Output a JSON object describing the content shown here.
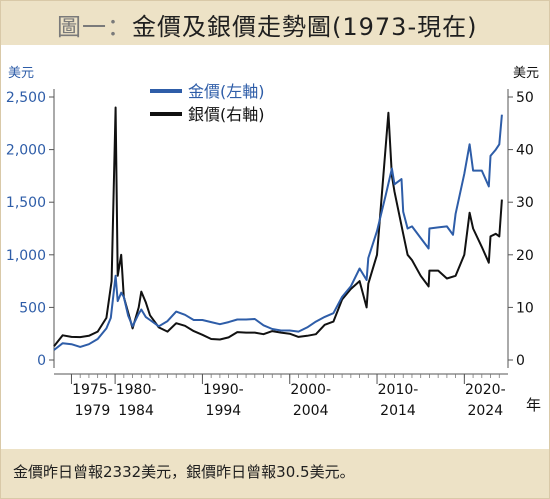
{
  "title": {
    "prefix": "圖一",
    "separator": "：",
    "text": "金價及銀價走勢圖(1973-現在)"
  },
  "footer": "金價昨日曾報2332美元，銀價昨日曾報30.5美元。",
  "chart_data": {
    "type": "line",
    "left_axis": {
      "unit": "美元",
      "ticks": [
        "0",
        "500",
        "1,000",
        "1,500",
        "2,000",
        "2,500"
      ],
      "range": [
        0,
        2500
      ],
      "color": "#2e5da8"
    },
    "right_axis": {
      "unit": "美元",
      "ticks": [
        "0",
        "10",
        "20",
        "30",
        "40",
        "50"
      ],
      "range": [
        0,
        50
      ]
    },
    "x_unit": "年",
    "x_ticks": [
      {
        "top": "1975-",
        "bottom": "1979"
      },
      {
        "top": "1980-",
        "bottom": "1984"
      },
      {
        "top": "1990-",
        "bottom": "1994"
      },
      {
        "top": "2000-",
        "bottom": "2004"
      },
      {
        "top": "2010-",
        "bottom": "2014"
      },
      {
        "top": "2020-",
        "bottom": "2024"
      }
    ],
    "legend": {
      "placement": "top-left"
    },
    "series": [
      {
        "name": "金價(左軸)",
        "axis": "left",
        "color": "#2e5da8",
        "points": [
          [
            1973,
            95
          ],
          [
            1974,
            160
          ],
          [
            1975,
            150
          ],
          [
            1976,
            125
          ],
          [
            1977,
            150
          ],
          [
            1978,
            200
          ],
          [
            1979,
            300
          ],
          [
            1979.5,
            400
          ],
          [
            1980.05,
            800
          ],
          [
            1980.3,
            560
          ],
          [
            1980.7,
            640
          ],
          [
            1981,
            600
          ],
          [
            1981.5,
            420
          ],
          [
            1982,
            320
          ],
          [
            1982.7,
            440
          ],
          [
            1983,
            480
          ],
          [
            1983.5,
            410
          ],
          [
            1984,
            380
          ],
          [
            1985,
            320
          ],
          [
            1986,
            370
          ],
          [
            1987,
            460
          ],
          [
            1988,
            430
          ],
          [
            1989,
            380
          ],
          [
            1990,
            380
          ],
          [
            1991,
            360
          ],
          [
            1992,
            340
          ],
          [
            1993,
            360
          ],
          [
            1994,
            385
          ],
          [
            1995,
            385
          ],
          [
            1996,
            390
          ],
          [
            1997,
            330
          ],
          [
            1998,
            295
          ],
          [
            1999,
            280
          ],
          [
            2000,
            280
          ],
          [
            2001,
            270
          ],
          [
            2002,
            310
          ],
          [
            2003,
            365
          ],
          [
            2004,
            410
          ],
          [
            2005,
            445
          ],
          [
            2006,
            600
          ],
          [
            2007,
            700
          ],
          [
            2008,
            870
          ],
          [
            2008.8,
            760
          ],
          [
            2009,
            970
          ],
          [
            2010,
            1225
          ],
          [
            2011,
            1570
          ],
          [
            2011.7,
            1820
          ],
          [
            2012,
            1670
          ],
          [
            2012.8,
            1720
          ],
          [
            2013,
            1410
          ],
          [
            2013.5,
            1250
          ],
          [
            2014,
            1270
          ],
          [
            2015,
            1160
          ],
          [
            2015.9,
            1060
          ],
          [
            2016,
            1250
          ],
          [
            2017,
            1260
          ],
          [
            2018,
            1270
          ],
          [
            2018.7,
            1190
          ],
          [
            2019,
            1390
          ],
          [
            2020,
            1770
          ],
          [
            2020.6,
            2050
          ],
          [
            2021,
            1800
          ],
          [
            2022,
            1800
          ],
          [
            2022.8,
            1650
          ],
          [
            2023,
            1940
          ],
          [
            2023.6,
            2000
          ],
          [
            2024,
            2050
          ],
          [
            2024.3,
            2332
          ]
        ]
      },
      {
        "name": "銀價(右軸)",
        "axis": "right",
        "color": "#111111",
        "points": [
          [
            1973,
            2.6
          ],
          [
            1974,
            4.7
          ],
          [
            1975,
            4.4
          ],
          [
            1976,
            4.35
          ],
          [
            1977,
            4.6
          ],
          [
            1978,
            5.4
          ],
          [
            1979,
            8
          ],
          [
            1979.6,
            15
          ],
          [
            1980.05,
            48
          ],
          [
            1980.3,
            16
          ],
          [
            1980.7,
            20
          ],
          [
            1981,
            12
          ],
          [
            1981.5,
            9
          ],
          [
            1982,
            6
          ],
          [
            1982.7,
            10
          ],
          [
            1983,
            13
          ],
          [
            1983.5,
            11
          ],
          [
            1984,
            8.5
          ],
          [
            1985,
            6.2
          ],
          [
            1986,
            5.4
          ],
          [
            1987,
            7
          ],
          [
            1988,
            6.5
          ],
          [
            1989,
            5.5
          ],
          [
            1990,
            4.8
          ],
          [
            1991,
            4
          ],
          [
            1992,
            3.9
          ],
          [
            1993,
            4.3
          ],
          [
            1994,
            5.3
          ],
          [
            1995,
            5.2
          ],
          [
            1996,
            5.2
          ],
          [
            1997,
            4.9
          ],
          [
            1998,
            5.5
          ],
          [
            1999,
            5.2
          ],
          [
            2000,
            5
          ],
          [
            2001,
            4.4
          ],
          [
            2002,
            4.6
          ],
          [
            2003,
            4.9
          ],
          [
            2004,
            6.7
          ],
          [
            2005,
            7.3
          ],
          [
            2006,
            11.5
          ],
          [
            2007,
            13.5
          ],
          [
            2008,
            15
          ],
          [
            2008.8,
            10
          ],
          [
            2009,
            14.5
          ],
          [
            2010,
            20
          ],
          [
            2011.3,
            47
          ],
          [
            2011.7,
            35
          ],
          [
            2012,
            32
          ],
          [
            2013,
            24
          ],
          [
            2013.5,
            20
          ],
          [
            2014,
            19
          ],
          [
            2015,
            16
          ],
          [
            2015.9,
            14
          ],
          [
            2016,
            17
          ],
          [
            2017,
            17
          ],
          [
            2018,
            15.5
          ],
          [
            2019,
            16
          ],
          [
            2020,
            20
          ],
          [
            2020.6,
            28
          ],
          [
            2021,
            25
          ],
          [
            2022,
            21.5
          ],
          [
            2022.8,
            18.5
          ],
          [
            2023,
            23.5
          ],
          [
            2023.6,
            24
          ],
          [
            2024,
            23.5
          ],
          [
            2024.3,
            30.5
          ]
        ]
      }
    ]
  }
}
